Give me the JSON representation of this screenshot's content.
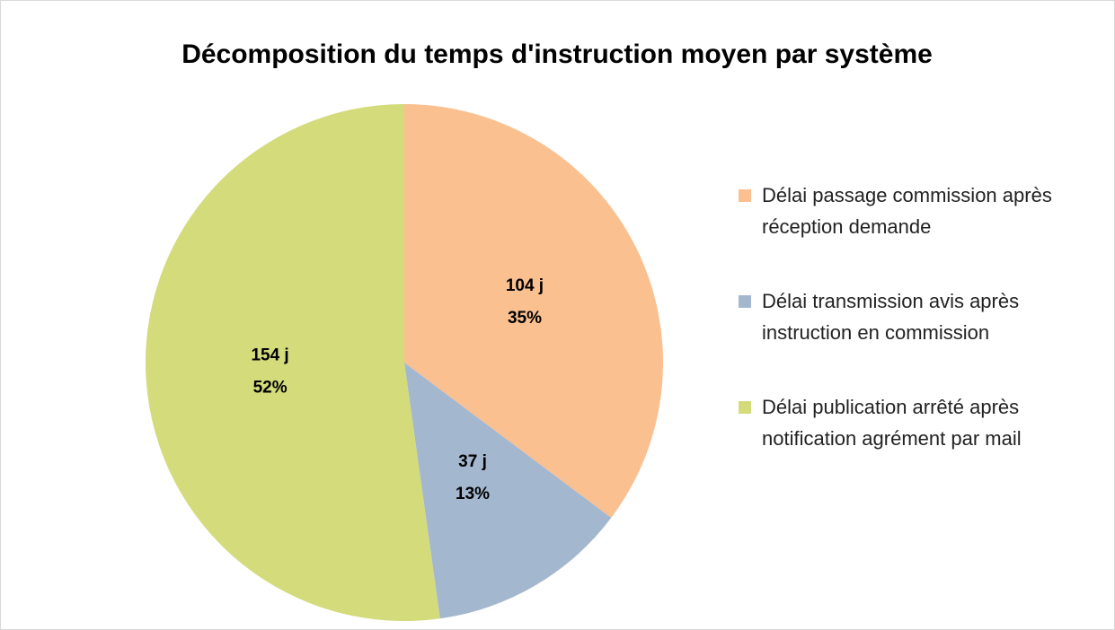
{
  "chart_data": {
    "type": "pie",
    "title": "Décomposition du temps d'instruction moyen par système",
    "categories": [
      "Délai passage commission après réception demande",
      "Délai transmission avis après instruction en commission",
      "Délai publication arrêté après notification agrément par mail"
    ],
    "values": [
      104,
      37,
      154
    ],
    "value_labels": [
      "104 j",
      "37 j",
      "154 j"
    ],
    "percentage_labels": [
      "35%",
      "13%",
      "52%"
    ],
    "colors": [
      "#fac090",
      "#a3b8cf",
      "#d3db7b"
    ],
    "legend": "right"
  }
}
